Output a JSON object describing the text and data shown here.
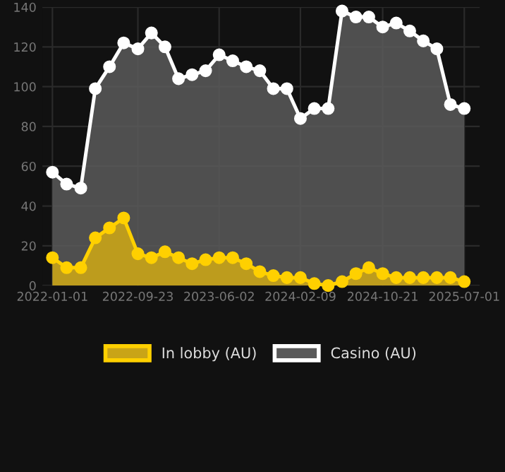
{
  "chart_data": {
    "type": "area",
    "x": [
      "2022-01-01",
      "2022-02-14",
      "2022-03-30",
      "2022-05-14",
      "2022-06-27",
      "2022-08-10",
      "2022-09-23",
      "2022-11-04",
      "2022-12-16",
      "2023-01-27",
      "2023-03-10",
      "2023-04-21",
      "2023-06-02",
      "2023-07-14",
      "2023-08-25",
      "2023-10-06",
      "2023-11-17",
      "2023-12-29",
      "2024-02-09",
      "2024-03-23",
      "2024-05-05",
      "2024-06-17",
      "2024-07-30",
      "2024-09-08",
      "2024-10-21",
      "2024-12-02",
      "2025-01-13",
      "2025-02-24",
      "2025-04-07",
      "2025-05-19",
      "2025-07-01"
    ],
    "series": [
      {
        "name": "In lobby (AU)",
        "color": "#ffd000",
        "values": [
          14,
          9,
          9,
          24,
          29,
          34,
          16,
          14,
          17,
          14,
          11,
          13,
          14,
          14,
          11,
          7,
          5,
          4,
          4,
          1,
          0,
          2,
          6,
          9,
          6,
          4,
          4,
          4,
          4,
          4,
          2
        ]
      },
      {
        "name": "Casino (AU)",
        "color": "#ffffff",
        "values": [
          57,
          51,
          49,
          99,
          110,
          122,
          119,
          127,
          120,
          104,
          106,
          108,
          116,
          113,
          110,
          108,
          99,
          99,
          84,
          89,
          89,
          138,
          135,
          135,
          130,
          132,
          128,
          123,
          119,
          91,
          89
        ]
      }
    ],
    "xlim": [
      "2021-12-01",
      "2025-08-18"
    ],
    "xticks": [
      "2022-01-01",
      "2022-09-23",
      "2023-06-02",
      "2024-02-09",
      "2024-10-21",
      "2025-07-01"
    ],
    "ylim": [
      0,
      140
    ],
    "yticks": [
      0,
      20,
      40,
      60,
      80,
      100,
      120,
      140
    ],
    "grid": true,
    "legend": "bottom",
    "marker": "circle",
    "line_style": "solid"
  }
}
